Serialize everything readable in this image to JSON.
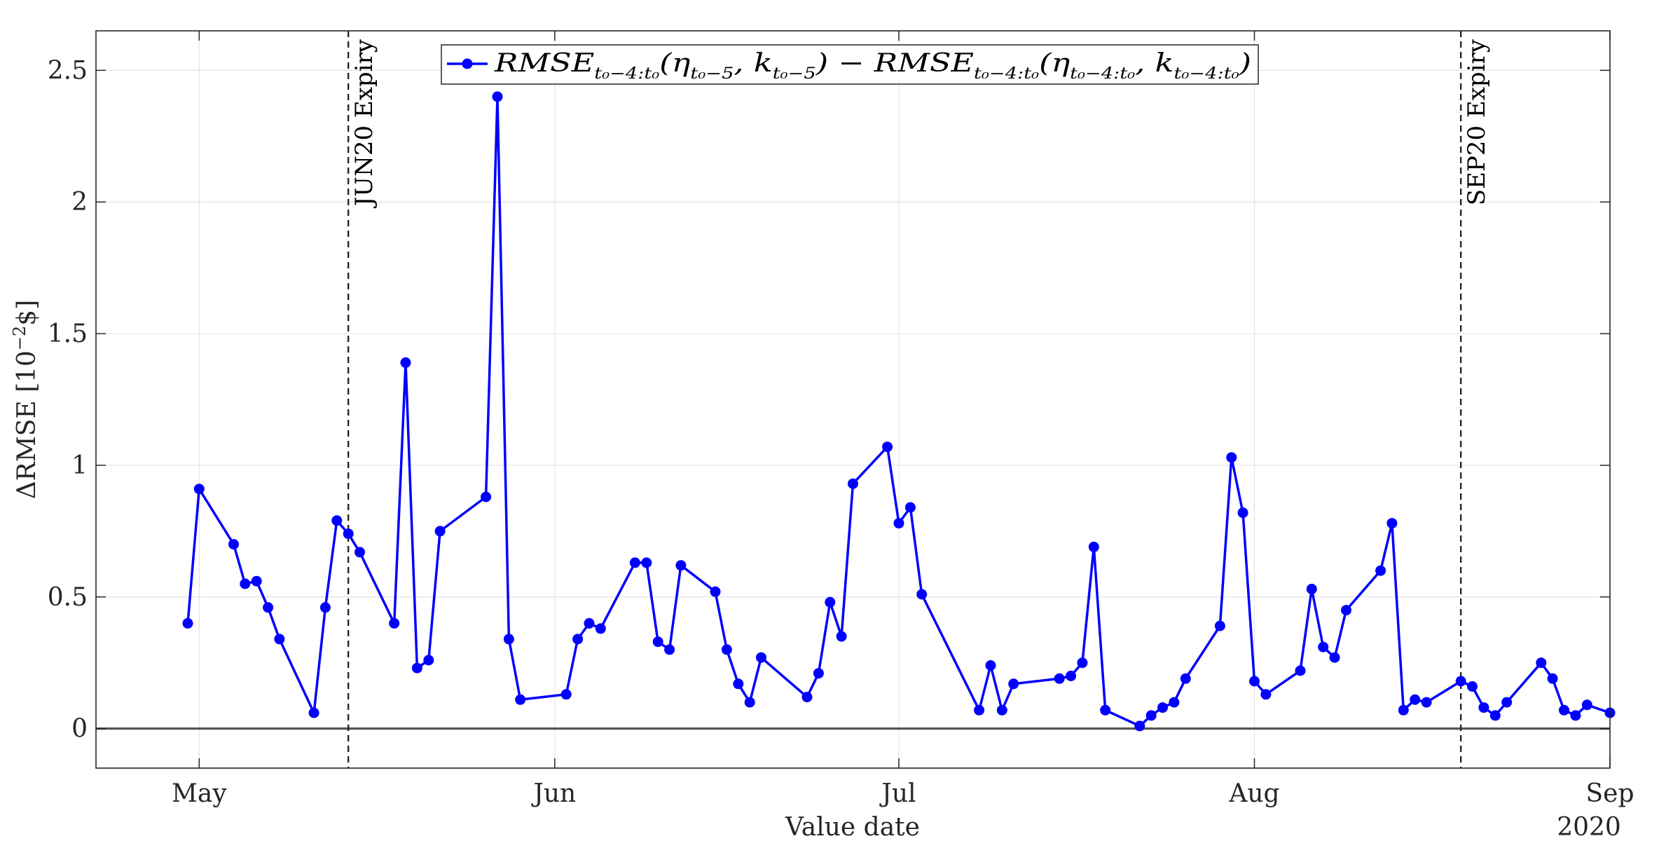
{
  "chart_data": {
    "type": "line",
    "xlabel": "Value date",
    "ylabel": "ΔRMSE [10",
    "ylabel_sup": "−2",
    "ylabel_tail": "$]",
    "year_label": "2020",
    "x_axis": {
      "type": "date",
      "min": "2020-04-22",
      "max": "2020-09-01"
    },
    "y_axis": {
      "min": -0.15,
      "max": 2.65,
      "ticks": [
        0,
        0.5,
        1,
        1.5,
        2,
        2.5
      ],
      "tick_labels": [
        "0",
        "0.5",
        "1",
        "1.5",
        "2",
        "2.5"
      ]
    },
    "x_ticks": [
      {
        "date": "2020-05-01",
        "label": "May"
      },
      {
        "date": "2020-06-01",
        "label": "Jun"
      },
      {
        "date": "2020-07-01",
        "label": "Jul"
      },
      {
        "date": "2020-08-01",
        "label": "Aug"
      },
      {
        "date": "2020-09-01",
        "label": "Sep"
      }
    ],
    "grid": true,
    "legend_position": "top-center",
    "series": [
      {
        "name": "RMSE_{t0−4:t0}(η_{t0−5}, k_{t0−5}) − RMSE_{t0−4:t0}(η_{t0−4:t0}, k_{t0−4:t0})",
        "legend": {
          "a": "RMSE",
          "a_sub": "t₀−4:t₀",
          "b": "(η",
          "b_sub": "t₀−5",
          "c": ", k",
          "c_sub": "t₀−5",
          "d": ")  −  RMSE",
          "d_sub": "t₀−4:t₀",
          "e": "(η",
          "e_sub": "t₀−4:t₀",
          "f": ", k",
          "f_sub": "t₀−4:t₀",
          "g": ")"
        },
        "color": "#0000ff",
        "points": [
          [
            "2020-04-30",
            0.4
          ],
          [
            "2020-05-01",
            0.91
          ],
          [
            "2020-05-04",
            0.7
          ],
          [
            "2020-05-05",
            0.55
          ],
          [
            "2020-05-06",
            0.56
          ],
          [
            "2020-05-07",
            0.46
          ],
          [
            "2020-05-08",
            0.34
          ],
          [
            "2020-05-11",
            0.06
          ],
          [
            "2020-05-12",
            0.46
          ],
          [
            "2020-05-13",
            0.79
          ],
          [
            "2020-05-14",
            0.74
          ],
          [
            "2020-05-15",
            0.67
          ],
          [
            "2020-05-18",
            0.4
          ],
          [
            "2020-05-19",
            1.39
          ],
          [
            "2020-05-20",
            0.23
          ],
          [
            "2020-05-21",
            0.26
          ],
          [
            "2020-05-22",
            0.75
          ],
          [
            "2020-05-26",
            0.88
          ],
          [
            "2020-05-27",
            2.4
          ],
          [
            "2020-05-28",
            0.34
          ],
          [
            "2020-05-29",
            0.11
          ],
          [
            "2020-06-02",
            0.13
          ],
          [
            "2020-06-03",
            0.34
          ],
          [
            "2020-06-04",
            0.4
          ],
          [
            "2020-06-05",
            0.38
          ],
          [
            "2020-06-08",
            0.63
          ],
          [
            "2020-06-09",
            0.63
          ],
          [
            "2020-06-10",
            0.33
          ],
          [
            "2020-06-11",
            0.3
          ],
          [
            "2020-06-12",
            0.62
          ],
          [
            "2020-06-15",
            0.52
          ],
          [
            "2020-06-16",
            0.3
          ],
          [
            "2020-06-17",
            0.17
          ],
          [
            "2020-06-18",
            0.1
          ],
          [
            "2020-06-19",
            0.27
          ],
          [
            "2020-06-23",
            0.12
          ],
          [
            "2020-06-24",
            0.21
          ],
          [
            "2020-06-25",
            0.48
          ],
          [
            "2020-06-26",
            0.35
          ],
          [
            "2020-06-27",
            0.93
          ],
          [
            "2020-06-30",
            1.07
          ],
          [
            "2020-07-01",
            0.78
          ],
          [
            "2020-07-02",
            0.84
          ],
          [
            "2020-07-03",
            0.51
          ],
          [
            "2020-07-08",
            0.07
          ],
          [
            "2020-07-09",
            0.24
          ],
          [
            "2020-07-10",
            0.07
          ],
          [
            "2020-07-11",
            0.17
          ],
          [
            "2020-07-15",
            0.19
          ],
          [
            "2020-07-16",
            0.2
          ],
          [
            "2020-07-17",
            0.25
          ],
          [
            "2020-07-18",
            0.69
          ],
          [
            "2020-07-19",
            0.07
          ],
          [
            "2020-07-22",
            0.01
          ],
          [
            "2020-07-23",
            0.05
          ],
          [
            "2020-07-24",
            0.08
          ],
          [
            "2020-07-25",
            0.1
          ],
          [
            "2020-07-26",
            0.19
          ],
          [
            "2020-07-29",
            0.39
          ],
          [
            "2020-07-30",
            1.03
          ],
          [
            "2020-07-31",
            0.82
          ],
          [
            "2020-08-01",
            0.18
          ],
          [
            "2020-08-02",
            0.13
          ],
          [
            "2020-08-05",
            0.22
          ],
          [
            "2020-08-06",
            0.53
          ],
          [
            "2020-08-07",
            0.31
          ],
          [
            "2020-08-08",
            0.27
          ],
          [
            "2020-08-09",
            0.45
          ],
          [
            "2020-08-12",
            0.6
          ],
          [
            "2020-08-13",
            0.78
          ],
          [
            "2020-08-14",
            0.07
          ],
          [
            "2020-08-15",
            0.11
          ],
          [
            "2020-08-16",
            0.1
          ],
          [
            "2020-08-19",
            0.18
          ],
          [
            "2020-08-20",
            0.16
          ],
          [
            "2020-08-21",
            0.08
          ],
          [
            "2020-08-22",
            0.05
          ],
          [
            "2020-08-23",
            0.1
          ],
          [
            "2020-08-26",
            0.25
          ],
          [
            "2020-08-27",
            0.19
          ],
          [
            "2020-08-28",
            0.07
          ],
          [
            "2020-08-29",
            0.05
          ],
          [
            "2020-08-30",
            0.09
          ],
          [
            "2020-09-01",
            0.06
          ]
        ]
      }
    ],
    "reference_lines": [
      {
        "type": "horizontal",
        "y": 0,
        "color": "#555555"
      },
      {
        "type": "vertical",
        "date": "2020-05-14",
        "label": "JUN20 Expiry",
        "style": "dashed"
      },
      {
        "type": "vertical",
        "date": "2020-08-19",
        "label": "SEP20 Expiry",
        "style": "dashed"
      }
    ]
  }
}
